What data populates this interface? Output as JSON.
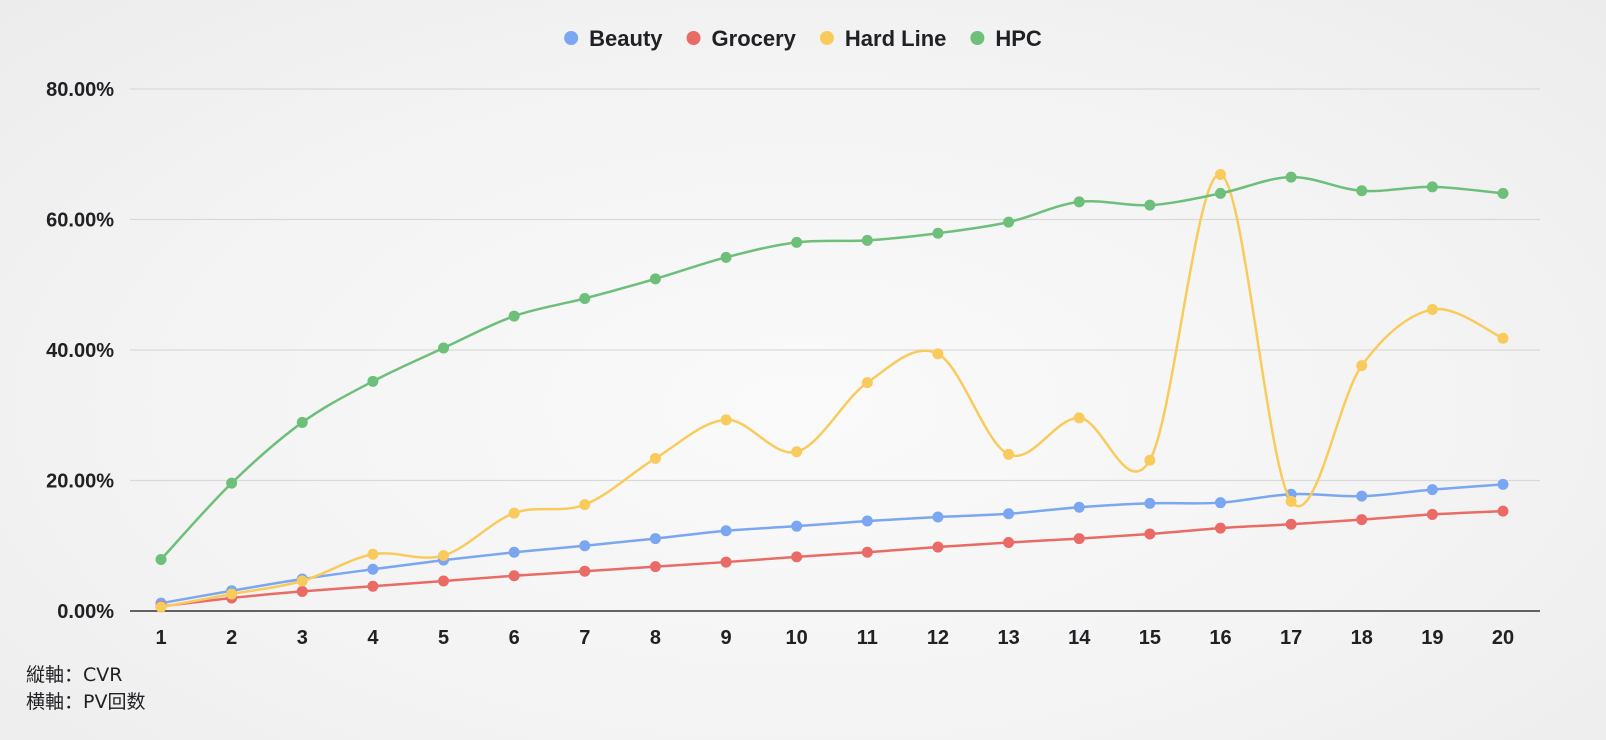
{
  "chart_data": {
    "type": "line",
    "title": "",
    "xlabel": "",
    "ylabel": "",
    "categories": [
      "1",
      "2",
      "3",
      "4",
      "5",
      "6",
      "7",
      "8",
      "9",
      "10",
      "11",
      "12",
      "13",
      "14",
      "15",
      "16",
      "17",
      "18",
      "19",
      "20"
    ],
    "ylim": [
      0,
      80
    ],
    "yticks": [
      0,
      20,
      40,
      60,
      80
    ],
    "ytick_labels": [
      "0.00%",
      "20.00%",
      "40.00%",
      "60.00%",
      "80.00%"
    ],
    "smooth": true,
    "grid": true,
    "legend_position": "top-center",
    "series": [
      {
        "name": "Beauty",
        "color": "#7aa6f2",
        "values": [
          1.2,
          3.1,
          4.9,
          6.4,
          7.8,
          9.0,
          10.0,
          11.1,
          12.3,
          13.0,
          13.8,
          14.4,
          14.9,
          15.9,
          16.5,
          16.6,
          17.9,
          17.6,
          18.6,
          19.4
        ]
      },
      {
        "name": "Grocery",
        "color": "#ea6b66",
        "values": [
          0.7,
          2.0,
          3.0,
          3.8,
          4.6,
          5.4,
          6.1,
          6.8,
          7.5,
          8.3,
          9.0,
          9.8,
          10.5,
          11.1,
          11.8,
          12.7,
          13.3,
          14.0,
          14.8,
          15.3
        ]
      },
      {
        "name": "Hard Line",
        "color": "#f9cb5c",
        "values": [
          0.6,
          2.6,
          4.6,
          8.7,
          8.5,
          15.0,
          16.3,
          23.4,
          29.3,
          24.4,
          35.0,
          39.4,
          24.0,
          29.6,
          23.1,
          66.9,
          16.8,
          37.6,
          46.2,
          41.8
        ]
      },
      {
        "name": "HPC",
        "color": "#6dbf7a",
        "values": [
          7.9,
          19.6,
          28.9,
          35.2,
          40.3,
          45.2,
          47.9,
          50.9,
          54.2,
          56.5,
          56.8,
          57.9,
          59.6,
          62.7,
          62.2,
          64.0,
          66.5,
          64.4,
          65.0,
          64.0
        ]
      }
    ]
  },
  "notes": {
    "line1": "縦軸：CVR",
    "line2": "横軸：PV回数"
  }
}
